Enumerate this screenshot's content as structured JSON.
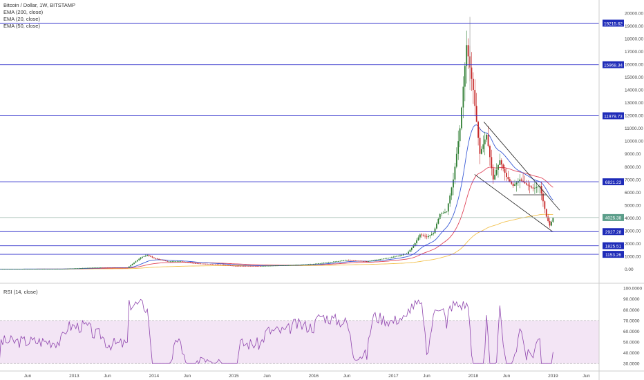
{
  "legend": {
    "symbol": "Bitcoin / Dollar, 1W, BITSTAMP",
    "ema200": "EMA (200, close)",
    "ema20": "EMA (20, close)",
    "ema50": "EMA (50, close)",
    "rsi": "RSI (14, close)"
  },
  "colors": {
    "horizontal_line": "#3333cc",
    "price_badge": "#1e2bb8",
    "last_price_badge": "#5b9e8a",
    "ema200": "#f2c14e",
    "ema20": "#3a5bd6",
    "ema50": "#e0455a",
    "rsi_line": "#8e44ad",
    "rsi_band": "#f3e5f5",
    "trendline": "#222222",
    "candle_up": "#2e7d32",
    "candle_down": "#c62828"
  },
  "chart_data": [
    {
      "type": "candlestick",
      "title": "Bitcoin / Dollar, 1W, BITSTAMP",
      "ylim": [
        -1000,
        20700
      ],
      "y_ticks": [
        "0.00",
        "1000.00",
        "2000.00",
        "3000.00",
        "4000.00",
        "5000.00",
        "6000.00",
        "7000.00",
        "8000.00",
        "9000.00",
        "10000.00",
        "11000.00",
        "12000.00",
        "13000.00",
        "14000.00",
        "15000.00",
        "16000.00",
        "17000.00",
        "18000.00",
        "19000.00",
        "20000.00"
      ],
      "x_ticks": [
        "Jun",
        "2013",
        "Jun",
        "2014",
        "Jun",
        "2015",
        "Jun",
        "2016",
        "Jun",
        "2017",
        "Jun",
        "2018",
        "Jun",
        "2019",
        "Jun"
      ],
      "horizontal_levels": [
        {
          "value": 19215.62,
          "label": "19215.62"
        },
        {
          "value": 15968.34,
          "label": "15968.34"
        },
        {
          "value": 11979.73,
          "label": "11979.73"
        },
        {
          "value": 6821.23,
          "label": "6821.23"
        },
        {
          "value": 2927.28,
          "label": "2927.28"
        },
        {
          "value": 1825.51,
          "label": "1825.51"
        },
        {
          "value": 1153.26,
          "label": "1153.26"
        }
      ],
      "last_price": {
        "value": 4025.38,
        "label": "4025.38"
      },
      "series": [
        {
          "name": "EMA (200, close)"
        },
        {
          "name": "EMA (20, close)"
        },
        {
          "name": "EMA (50, close)"
        }
      ]
    },
    {
      "type": "line",
      "title": "RSI (14, close)",
      "ylim": [
        25,
        102
      ],
      "y_ticks": [
        "30.0000",
        "40.0000",
        "50.0000",
        "60.0000",
        "70.0000",
        "80.0000",
        "90.0000",
        "100.0000"
      ],
      "band": [
        30,
        70
      ]
    }
  ]
}
